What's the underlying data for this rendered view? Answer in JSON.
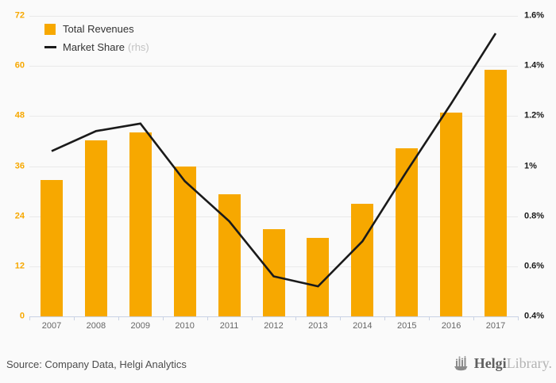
{
  "colors": {
    "bg": "#fafafa",
    "bar": "#f7a800",
    "line": "#1a1a1a",
    "grid": "#e9e9e9",
    "axis": "#c9d2e4",
    "left_label": "#f7a800",
    "right_label": "#1a1a1a",
    "year": "#666666",
    "legend_text": "#333333",
    "rhs": "#c3c3c3",
    "source": "#4d4d4d",
    "logo_dark": "#5f5f5f",
    "logo_light": "#b3b3b3",
    "logo_icon": "#8a8a8a"
  },
  "legend": {
    "items": [
      {
        "label": "Total Revenues",
        "suffix": "",
        "swatch": "square"
      },
      {
        "label": "Market Share",
        "suffix": "(rhs)",
        "swatch": "line"
      }
    ]
  },
  "footer": {
    "source": "Source: Company Data, Helgi Analytics",
    "logo": {
      "bold": "Helgi",
      "light": "Library."
    }
  },
  "chart_data": {
    "type": "bar+line combo",
    "categories": [
      "2007",
      "2008",
      "2009",
      "2010",
      "2011",
      "2012",
      "2013",
      "2014",
      "2015",
      "2016",
      "2017"
    ],
    "series": [
      {
        "name": "Total Revenues",
        "type": "bar",
        "axis": "left",
        "values": [
          32.7,
          42.2,
          44.0,
          36.0,
          29.2,
          20.9,
          18.8,
          27.0,
          40.3,
          48.8,
          59.0
        ]
      },
      {
        "name": "Market Share",
        "type": "line",
        "axis": "right",
        "values": [
          1.06,
          1.14,
          1.17,
          0.94,
          0.78,
          0.56,
          0.52,
          0.7,
          0.98,
          1.25,
          1.53
        ]
      }
    ],
    "left_axis": {
      "min": 0,
      "max": 72,
      "ticks": [
        0,
        12,
        24,
        36,
        48,
        60,
        72
      ],
      "tick_labels": [
        "0",
        "12",
        "24",
        "36",
        "48",
        "60",
        "72"
      ]
    },
    "right_axis": {
      "min": 0.4,
      "max": 1.6,
      "ticks": [
        0.4,
        0.6,
        0.8,
        1.0,
        1.2,
        1.4,
        1.6
      ],
      "tick_labels": [
        "0.4%",
        "0.6%",
        "0.8%",
        "1%",
        "1.2%",
        "1.4%",
        "1.6%"
      ]
    },
    "grid": "horizontal only",
    "legend_position": "top-left inside plot",
    "title": "",
    "xlabel": "",
    "ylabel": ""
  }
}
